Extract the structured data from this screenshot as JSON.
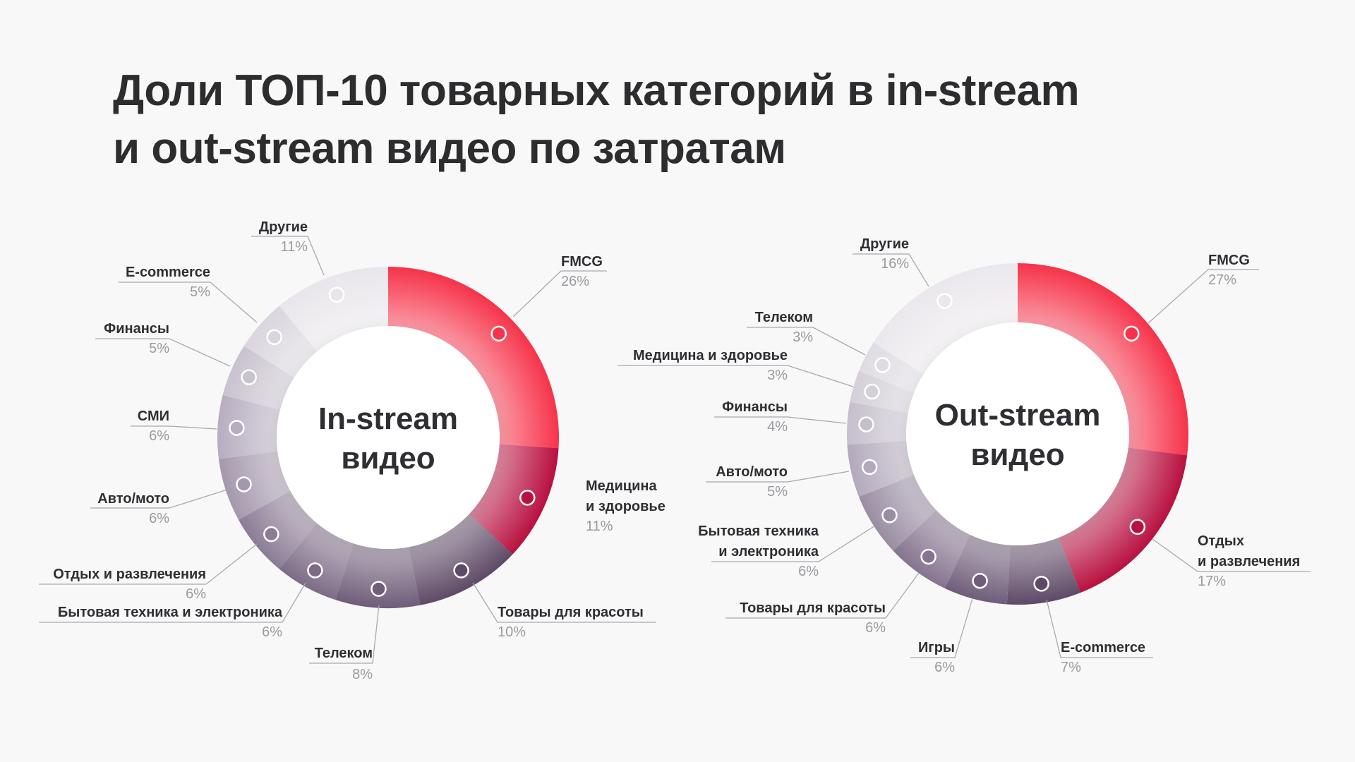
{
  "title": {
    "line1": "Доли ТОП-10 товарных категорий в in-stream",
    "line2": "и out-stream видео по затратам"
  },
  "chart_data": [
    {
      "type": "pie",
      "center_label": [
        "In-stream",
        "видео"
      ],
      "slices": [
        {
          "label": [
            "FMCG"
          ],
          "value": 26,
          "value_label": "26%",
          "color": "#f6334a"
        },
        {
          "label": [
            "Медицина",
            "и здоровье"
          ],
          "value": 11,
          "value_label": "11%",
          "color": "#b8103f"
        },
        {
          "label": [
            "Товары для красоты"
          ],
          "value": 10,
          "value_label": "10%",
          "color": "#5e4a66"
        },
        {
          "label": [
            "Телеком"
          ],
          "value": 8,
          "value_label": "8%",
          "color": "#6f5d79"
        },
        {
          "label": [
            "Бытовая техника и электроника"
          ],
          "value": 6,
          "value_label": "6%",
          "color": "#7d6b86"
        },
        {
          "label": [
            "Отдых и развлечения"
          ],
          "value": 6,
          "value_label": "6%",
          "color": "#8b7c95"
        },
        {
          "label": [
            "Авто/мото"
          ],
          "value": 6,
          "value_label": "6%",
          "color": "#a598ad"
        },
        {
          "label": [
            "СМИ"
          ],
          "value": 6,
          "value_label": "6%",
          "color": "#b7adbf"
        },
        {
          "label": [
            "Финансы"
          ],
          "value": 5,
          "value_label": "5%",
          "color": "#c9c2cf"
        },
        {
          "label": [
            "E-commerce"
          ],
          "value": 5,
          "value_label": "5%",
          "color": "#dad5de"
        },
        {
          "label": [
            "Другие"
          ],
          "value": 11,
          "value_label": "11%",
          "color": "#e9e6eb"
        }
      ]
    },
    {
      "type": "pie",
      "center_label": [
        "Out-stream",
        "видео"
      ],
      "slices": [
        {
          "label": [
            "FMCG"
          ],
          "value": 27,
          "value_label": "27%",
          "color": "#f6334a"
        },
        {
          "label": [
            "Отдых",
            "и развлечения"
          ],
          "value": 17,
          "value_label": "17%",
          "color": "#b8103f"
        },
        {
          "label": [
            "E-commerce"
          ],
          "value": 7,
          "value_label": "7%",
          "color": "#5e4a66"
        },
        {
          "label": [
            "Игры"
          ],
          "value": 6,
          "value_label": "6%",
          "color": "#6f5d79"
        },
        {
          "label": [
            "Товары для красоты"
          ],
          "value": 6,
          "value_label": "6%",
          "color": "#85748f"
        },
        {
          "label": [
            "Бытовая техника",
            "и электроника"
          ],
          "value": 6,
          "value_label": "6%",
          "color": "#9a8da3"
        },
        {
          "label": [
            "Авто/мото"
          ],
          "value": 5,
          "value_label": "5%",
          "color": "#b3a9bb"
        },
        {
          "label": [
            "Финансы"
          ],
          "value": 4,
          "value_label": "4%",
          "color": "#c6bfcc"
        },
        {
          "label": [
            "Медицина и здоровье"
          ],
          "value": 3,
          "value_label": "3%",
          "color": "#d4cfd8"
        },
        {
          "label": [
            "Телеком"
          ],
          "value": 3,
          "value_label": "3%",
          "color": "#dfdbe2"
        },
        {
          "label": [
            "Другие"
          ],
          "value": 16,
          "value_label": "16%",
          "color": "#ebe8ed"
        }
      ]
    }
  ]
}
